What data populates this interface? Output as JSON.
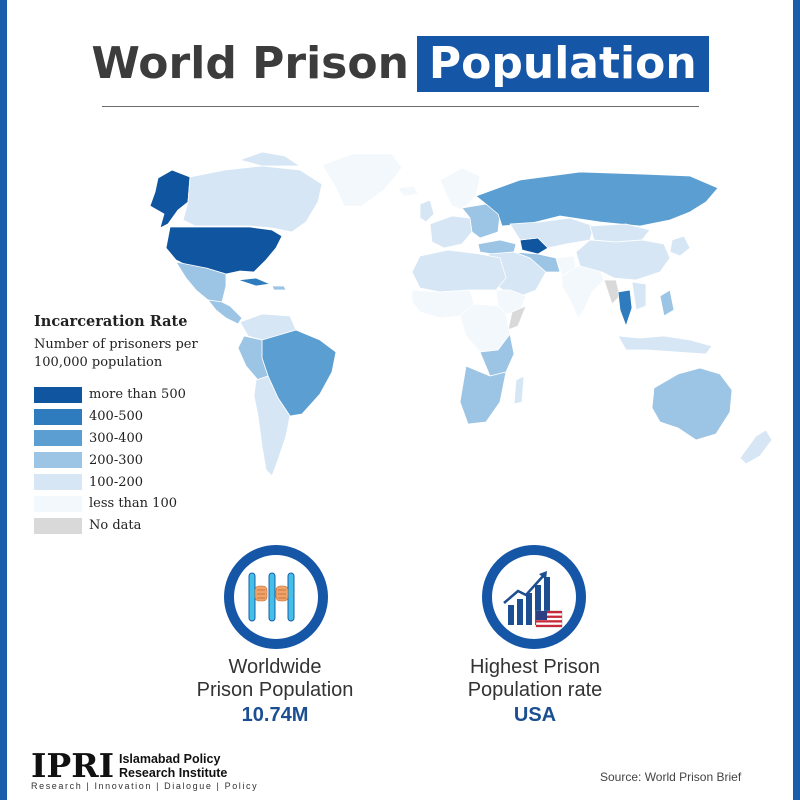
{
  "title": {
    "lead": "World Prison",
    "highlight": "Population"
  },
  "legend": {
    "title": "Incarceration Rate",
    "subtitle": "Number of prisoners per 100,000 population",
    "items": [
      {
        "label": "more than 500",
        "color": "#0f55a0"
      },
      {
        "label": "400-500",
        "color": "#2e7bbd"
      },
      {
        "label": "300-400",
        "color": "#5b9ed2"
      },
      {
        "label": "200-300",
        "color": "#9cc4e4"
      },
      {
        "label": "100-200",
        "color": "#d6e6f5"
      },
      {
        "label": "less than 100",
        "color": "#f3f8fd"
      },
      {
        "label": "No data",
        "color": "#d9d9d9"
      }
    ]
  },
  "stats": [
    {
      "label_line1": "Worldwide",
      "label_line2": "Prison Population",
      "value": "10.74M",
      "icon": "prison-bars-icon"
    },
    {
      "label_line1": "Highest Prison",
      "label_line2": "Population rate",
      "value": "USA",
      "icon": "rising-bar-chart-usa-flag-icon"
    }
  ],
  "logo": {
    "abbr": "IPRI",
    "name_line1": "Islamabad Policy",
    "name_line2": "Research Institute",
    "tagline": "Research | Innovation | Dialogue | Policy"
  },
  "source": "Source: World Prison Brief",
  "colors": {
    "brand_blue": "#1556a6",
    "frame": "#1b5cab"
  }
}
